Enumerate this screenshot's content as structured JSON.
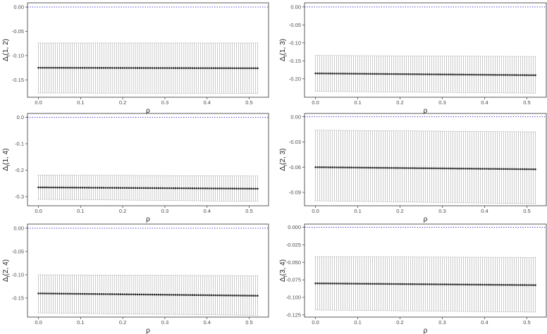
{
  "colors": {
    "ci": "#a8a8a8",
    "point": "#222222",
    "reference": "#2222cc",
    "frame": "#333333"
  },
  "chart_data": [
    {
      "type": "scatter",
      "title": "",
      "xlabel": "ρ",
      "ylabel_base": "Δ",
      "ylabel_sub": "t",
      "ylabel_args": "(1, 2)",
      "xlim": [
        -0.026,
        0.546
      ],
      "ylim": [
        -0.1858,
        0.0088
      ],
      "xticks": [
        0.0,
        0.1,
        0.2,
        0.3,
        0.4,
        0.5
      ],
      "xtick_labels": [
        "0.0",
        "0.1",
        "0.2",
        "0.3",
        "0.4",
        "0.5"
      ],
      "yticks": [
        0.0,
        -0.05,
        -0.1,
        -0.15
      ],
      "ytick_labels": [
        "0.00",
        "-0.05",
        "-0.10",
        "-0.15"
      ],
      "reference_line": 0,
      "grid": false,
      "series": [
        {
          "rho_start": 0.0,
          "rho_end": 0.52,
          "n_points": 105,
          "estimate": [
            -0.125,
            -0.126
          ],
          "lower": [
            -0.177,
            -0.178
          ],
          "upper": [
            -0.074,
            -0.074
          ]
        }
      ]
    },
    {
      "type": "scatter",
      "title": "",
      "xlabel": "ρ",
      "ylabel_base": "Δ",
      "ylabel_sub": "t",
      "ylabel_args": "(1, 3)",
      "xlim": [
        -0.026,
        0.546
      ],
      "ylim": [
        -0.2514,
        0.0114
      ],
      "xticks": [
        0.0,
        0.1,
        0.2,
        0.3,
        0.4,
        0.5
      ],
      "xtick_labels": [
        "0.0",
        "0.1",
        "0.2",
        "0.3",
        "0.4",
        "0.5"
      ],
      "yticks": [
        0.0,
        -0.05,
        -0.1,
        -0.15,
        -0.2
      ],
      "ytick_labels": [
        "0.00",
        "-0.05",
        "-0.10",
        "-0.15",
        "-0.20"
      ],
      "reference_line": 0,
      "grid": false,
      "series": [
        {
          "rho_start": 0.0,
          "rho_end": 0.52,
          "n_points": 105,
          "estimate": [
            -0.185,
            -0.19
          ],
          "lower": [
            -0.235,
            -0.24
          ],
          "upper": [
            -0.135,
            -0.138
          ]
        }
      ]
    },
    {
      "type": "scatter",
      "title": "",
      "xlabel": "ρ",
      "ylabel_base": "Δ",
      "ylabel_sub": "t",
      "ylabel_args": "(1, 4)",
      "xlim": [
        -0.026,
        0.546
      ],
      "ylim": [
        -0.3345,
        0.0145
      ],
      "xticks": [
        0.0,
        0.1,
        0.2,
        0.3,
        0.4,
        0.5
      ],
      "xtick_labels": [
        "0.0",
        "0.1",
        "0.2",
        "0.3",
        "0.4",
        "0.5"
      ],
      "yticks": [
        0.0,
        -0.1,
        -0.2,
        -0.3
      ],
      "ytick_labels": [
        "0.0",
        "-0.1",
        "-0.2",
        "-0.3"
      ],
      "reference_line": 0,
      "grid": false,
      "series": [
        {
          "rho_start": 0.0,
          "rho_end": 0.52,
          "n_points": 105,
          "estimate": [
            -0.265,
            -0.27
          ],
          "lower": [
            -0.31,
            -0.318
          ],
          "upper": [
            -0.218,
            -0.222
          ]
        }
      ]
    },
    {
      "type": "scatter",
      "title": "",
      "xlabel": "ρ",
      "ylabel_base": "Δ",
      "ylabel_sub": "t",
      "ylabel_args": "(2, 3)",
      "xlim": [
        -0.026,
        0.546
      ],
      "ylim": [
        -0.1059,
        0.0039
      ],
      "xticks": [
        0.0,
        0.1,
        0.2,
        0.3,
        0.4,
        0.5
      ],
      "xtick_labels": [
        "0.0",
        "0.1",
        "0.2",
        "0.3",
        "0.4",
        "0.5"
      ],
      "yticks": [
        0.0,
        -0.03,
        -0.06,
        -0.09
      ],
      "ytick_labels": [
        "0.00",
        "-0.03",
        "-0.06",
        "-0.09"
      ],
      "reference_line": 0,
      "grid": false,
      "series": [
        {
          "rho_start": 0.0,
          "rho_end": 0.52,
          "n_points": 105,
          "estimate": [
            -0.06,
            -0.0625
          ],
          "lower": [
            -0.1,
            -0.1035
          ],
          "upper": [
            -0.016,
            -0.018
          ]
        }
      ]
    },
    {
      "type": "scatter",
      "title": "",
      "xlabel": "ρ",
      "ylabel_base": "Δ",
      "ylabel_sub": "t",
      "ylabel_args": "(2, 4)",
      "xlim": [
        -0.026,
        0.546
      ],
      "ylim": [
        -0.1909,
        0.0089
      ],
      "xticks": [
        0.0,
        0.1,
        0.2,
        0.3,
        0.4,
        0.5
      ],
      "xtick_labels": [
        "0.0",
        "0.1",
        "0.2",
        "0.3",
        "0.4",
        "0.5"
      ],
      "yticks": [
        0.0,
        -0.05,
        -0.1,
        -0.15
      ],
      "ytick_labels": [
        "0.00",
        "-0.05",
        "-0.10",
        "-0.15"
      ],
      "reference_line": 0,
      "grid": false,
      "series": [
        {
          "rho_start": 0.0,
          "rho_end": 0.52,
          "n_points": 105,
          "estimate": [
            -0.14,
            -0.145
          ],
          "lower": [
            -0.182,
            -0.187
          ],
          "upper": [
            -0.1,
            -0.102
          ]
        }
      ]
    },
    {
      "type": "scatter",
      "title": "",
      "xlabel": "ρ",
      "ylabel_base": "Δ",
      "ylabel_sub": "t",
      "ylabel_args": "(3, 4)",
      "xlim": [
        -0.026,
        0.546
      ],
      "ylim": [
        -0.1281,
        0.0045
      ],
      "xticks": [
        0.0,
        0.1,
        0.2,
        0.3,
        0.4,
        0.5
      ],
      "xtick_labels": [
        "0.0",
        "0.1",
        "0.2",
        "0.3",
        "0.4",
        "0.5"
      ],
      "yticks": [
        0.0,
        -0.025,
        -0.05,
        -0.075,
        -0.1,
        -0.125
      ],
      "ytick_labels": [
        "0.000",
        "-0.025",
        "-0.050",
        "-0.075",
        "-0.100",
        "-0.125"
      ],
      "reference_line": 0,
      "grid": false,
      "series": [
        {
          "rho_start": 0.0,
          "rho_end": 0.52,
          "n_points": 105,
          "estimate": [
            -0.08,
            -0.0825
          ],
          "lower": [
            -0.118,
            -0.121
          ],
          "upper": [
            -0.042,
            -0.043
          ]
        }
      ]
    }
  ]
}
